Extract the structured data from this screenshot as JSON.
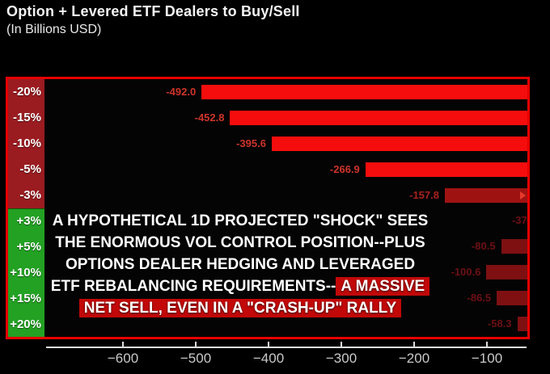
{
  "header": {
    "title": "Option + Levered ETF Dealers to Buy/Sell",
    "subtitle": "(In Billions USD)"
  },
  "chart_data": {
    "type": "bar",
    "orientation": "horizontal",
    "title": "Option + Levered ETF Dealers to Buy/Sell",
    "units": "Billions USD",
    "categories": [
      "-20%",
      "-15%",
      "-10%",
      "-5%",
      "-3%",
      "+3%",
      "+5%",
      "+10%",
      "+15%",
      "+20%"
    ],
    "bars": [
      {
        "category": "-20%",
        "value": -492.0,
        "label": "-492.0",
        "style": "bright",
        "tip_arrow": false
      },
      {
        "category": "-15%",
        "value": -452.8,
        "label": "-452.8",
        "style": "bright",
        "tip_arrow": false
      },
      {
        "category": "-10%",
        "value": -395.6,
        "label": "-395.6",
        "style": "bright",
        "tip_arrow": false
      },
      {
        "category": "-5%",
        "value": -266.9,
        "label": "-266.9",
        "style": "bright",
        "tip_arrow": false
      },
      {
        "category": "-3%",
        "value": -157.8,
        "label": "-157.8",
        "style": "mid",
        "tip_arrow": true
      },
      {
        "category": "+3%",
        "value": -37.0,
        "label": "-37",
        "style": "dark",
        "tip_arrow": false
      },
      {
        "category": "+5%",
        "value": -80.5,
        "label": "-80.5",
        "style": "dark",
        "tip_arrow": false
      },
      {
        "category": "+10%",
        "value": -100.6,
        "label": "-100.6",
        "style": "dark",
        "tip_arrow": false
      },
      {
        "category": "+15%",
        "value": -86.5,
        "label": "-86.5",
        "style": "dark",
        "tip_arrow": false
      },
      {
        "category": "+20%",
        "value": -58.3,
        "label": "-58.3",
        "style": "dark",
        "tip_arrow": false
      }
    ],
    "x_ticks": [
      {
        "value": -600,
        "label": "−600"
      },
      {
        "value": -500,
        "label": "−500"
      },
      {
        "value": -400,
        "label": "−400"
      },
      {
        "value": -300,
        "label": "−300"
      },
      {
        "value": -200,
        "label": "−200"
      },
      {
        "value": -100,
        "label": "−100"
      }
    ],
    "x_axis_visible_range": [
      -700,
      -41
    ],
    "grid": false,
    "legend": false,
    "notes": "Bars anchored at 0, which lies beyond the right edge of the visible plot; bars and the +3% label are clipped by the red frame."
  },
  "annotation": {
    "line1": "A HYPOTHETICAL 1D PROJECTED \"SHOCK\" SEES",
    "line2": "THE ENORMOUS VOL CONTROL POSITION--PLUS",
    "line3": "OPTIONS DEALER HEDGING AND LEVERAGED",
    "line4_normal": "ETF REBALANCING REQUIREMENTS--",
    "line4_highlight": "A MASSIVE",
    "line5_highlight": "NET SELL, EVEN IN A \"CRASH-UP\" RALLY"
  },
  "colors": {
    "bright_bar": "#f50d0d",
    "mid_bar": "#9e1312",
    "dark_bar": "#7e1012",
    "frame_border": "#e60000",
    "negative_category_bg": "#9a1c21",
    "positive_category_bg": "#23a123",
    "highlight_bg": "#c20808",
    "axis_text": "#c9c9c9"
  }
}
